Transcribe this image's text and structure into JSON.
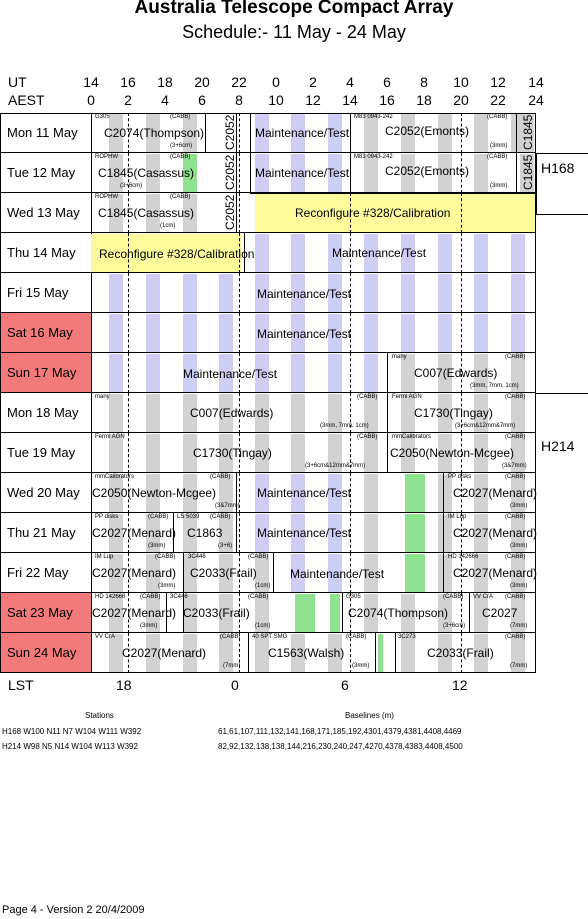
{
  "header": {
    "title": "Australia Telescope Compact Array",
    "subtitle": "Schedule:- 11 May - 24 May",
    "ut_label": "UT",
    "aest_label": "AEST",
    "ut_ticks": [
      "14",
      "16",
      "18",
      "20",
      "22",
      "0",
      "2",
      "4",
      "6",
      "8",
      "10",
      "12",
      "14"
    ],
    "aest_ticks": [
      "0",
      "2",
      "4",
      "6",
      "8",
      "10",
      "12",
      "14",
      "16",
      "18",
      "20",
      "22",
      "24"
    ]
  },
  "days": [
    {
      "label": "Mon 11 May",
      "weekend": false
    },
    {
      "label": "Tue  12 May",
      "weekend": false
    },
    {
      "label": "Wed 13 May",
      "weekend": false
    },
    {
      "label": "Thu  14 May",
      "weekend": false
    },
    {
      "label": "Fri    15 May",
      "weekend": false
    },
    {
      "label": "Sat   16 May",
      "weekend": true
    },
    {
      "label": "Sun  17 May",
      "weekend": true
    },
    {
      "label": "Mon 18 May",
      "weekend": false
    },
    {
      "label": "Tue  19 May",
      "weekend": false
    },
    {
      "label": "Wed 20 May",
      "weekend": false
    },
    {
      "label": "Thu  21 May",
      "weekend": false
    },
    {
      "label": "Fri    22 May",
      "weekend": false
    },
    {
      "label": "Sat  23 May",
      "weekend": true
    },
    {
      "label": "Sun  24 May",
      "weekend": true
    }
  ],
  "configs": [
    "H168",
    "H214"
  ],
  "blocks": {
    "r0": {
      "src1": "G305",
      "cabb": "(CABB)",
      "proj1": "C2074(Thompson)",
      "note1": "(3+6cm)",
      "vert1": "C2052",
      "maint": "Maintenance/Test",
      "src2": "M83  0943-242",
      "proj2": "C2052(Emonts)",
      "note2": "(3mm)",
      "vert2": "C1845"
    },
    "r1": {
      "src1": "ROPHW",
      "cabb": "(CABB)",
      "proj1": "C1845(Casassus)",
      "note1": "(3+6cm)",
      "vert1": "C2052",
      "maint": "Maintenance/Test",
      "src2": "M83  0943-242",
      "proj2": "C2052(Emonts)",
      "note2": "(3mm)",
      "vert2": "C1845"
    },
    "r2": {
      "src1": "ROPHW",
      "cabb": "(CABB)",
      "proj1": "C1845(Casassus)",
      "note1": "(1cm)",
      "vert1": "C2052",
      "reconfig": "Reconfigure #328/Calibration"
    },
    "r3": {
      "reconfig": "Reconfigure #328/Calibration",
      "maint": "Maintenance/Test"
    },
    "r4": {
      "maint": "Maintenance/Test"
    },
    "r5": {
      "maint": "Maintenance/Test"
    },
    "r6": {
      "maint": "Maintenance/Test",
      "src2": "many",
      "cabb": "(CABB)",
      "proj2": "C007(Edwards)",
      "note2": "(3mm, 7mm, 1cm)"
    },
    "r7": {
      "src1": "many",
      "cabb": "(CABB)",
      "proj1": "C007(Edwards)",
      "note1": "(3mm, 7mm, 1cm)",
      "src2": "Fermi AGN",
      "proj2": "C1730(Tingay)",
      "note2": "(3+6cm&12mm&7mm)"
    },
    "r8": {
      "src1": "Fermi AGN",
      "cabb": "(CABB)",
      "proj1": "C1730(Tingay)",
      "note1": "(3+6cm&12mm&7mm)",
      "src2": "mmCalibrators",
      "proj2": "C2050(Newton-Mcgee)",
      "note2": "(3&7mm)"
    },
    "r9": {
      "src1": "mmCalibrators",
      "cabb": "(CABB)",
      "proj1": "C2050(Newton-Mcgee)",
      "note1": "(3&7mm)",
      "maint": "Maintenance/Test",
      "src2": "PP disks",
      "proj2": "C2027(Menard)",
      "note2": "(3mm)"
    },
    "r10": {
      "src1": "PP disks",
      "cabb": "(CABB)",
      "proj1": "C2027(Menard)",
      "note1": "(3mm)",
      "src1b": "LS 5039",
      "proj1b": "C1863",
      "note1b": "(3+6)",
      "maint": "Maintenance/Test",
      "src2": "IM Lup",
      "proj2": "C2027(Menard)",
      "note2": "(3mm)"
    },
    "r11": {
      "src1": "IM Lup",
      "cabb": "(CABB)",
      "proj1": "C2027(Menard)",
      "note1": "(3mm)",
      "src1b": "3C446",
      "proj1b": "C2033(Frail)",
      "note1b": "(1cm)",
      "maint": "Maintenance/Test",
      "src2": "HD 142666",
      "proj2": "C2027(Menard)",
      "note2": "(3mm)"
    },
    "r12": {
      "src1": "HD 142666",
      "cabb": "(CABB)",
      "proj1": "C2027(Menard)",
      "note1": "(3mm)",
      "src1b": "3C446",
      "proj1b": "C2033(Frail)",
      "note1b": "(1cm)",
      "src2": "G305",
      "proj2": "C2074(Thompson)",
      "note2": "(3+6cm)",
      "src3": "VV CrA",
      "proj3": "C2027",
      "note3": "(7mm)"
    },
    "r13": {
      "src1": "VV CrA",
      "cabb": "(CABB)",
      "proj1": "C2027(Menard)",
      "note1": "(7mm)",
      "src1b": "40 SPT SMG",
      "proj1b": "C1563(Walsh)",
      "note1b": "(3mm)",
      "src2": "3C273",
      "proj2": "C2033(Frail)",
      "note2": "(7mm)"
    }
  },
  "lst": {
    "label": "LST",
    "ticks": [
      "18",
      "0",
      "6",
      "12"
    ]
  },
  "stations": {
    "heading": "Stations",
    "h168": "H168  W100  N11  N7  W104  W111  W392",
    "h214": "H214  W98  N5  N14  W104  W113  W392"
  },
  "baselines": {
    "heading": "Baselines (m)",
    "h168": "61,61,107,111,132,141,168,171,185,192,4301,4379,4381,4408,4469",
    "h214": "82,92,132,138,138,144,216,230,240,247,4270,4378,4383,4408,4500"
  },
  "footer": "Page 4 - Version 2  20/4/2009",
  "colors": {
    "weekend": "#f27a7a",
    "grey": "#d2d2d2",
    "blue": "#cdcdf5",
    "yellow": "#fbfb9c",
    "green": "#8fe08f"
  }
}
